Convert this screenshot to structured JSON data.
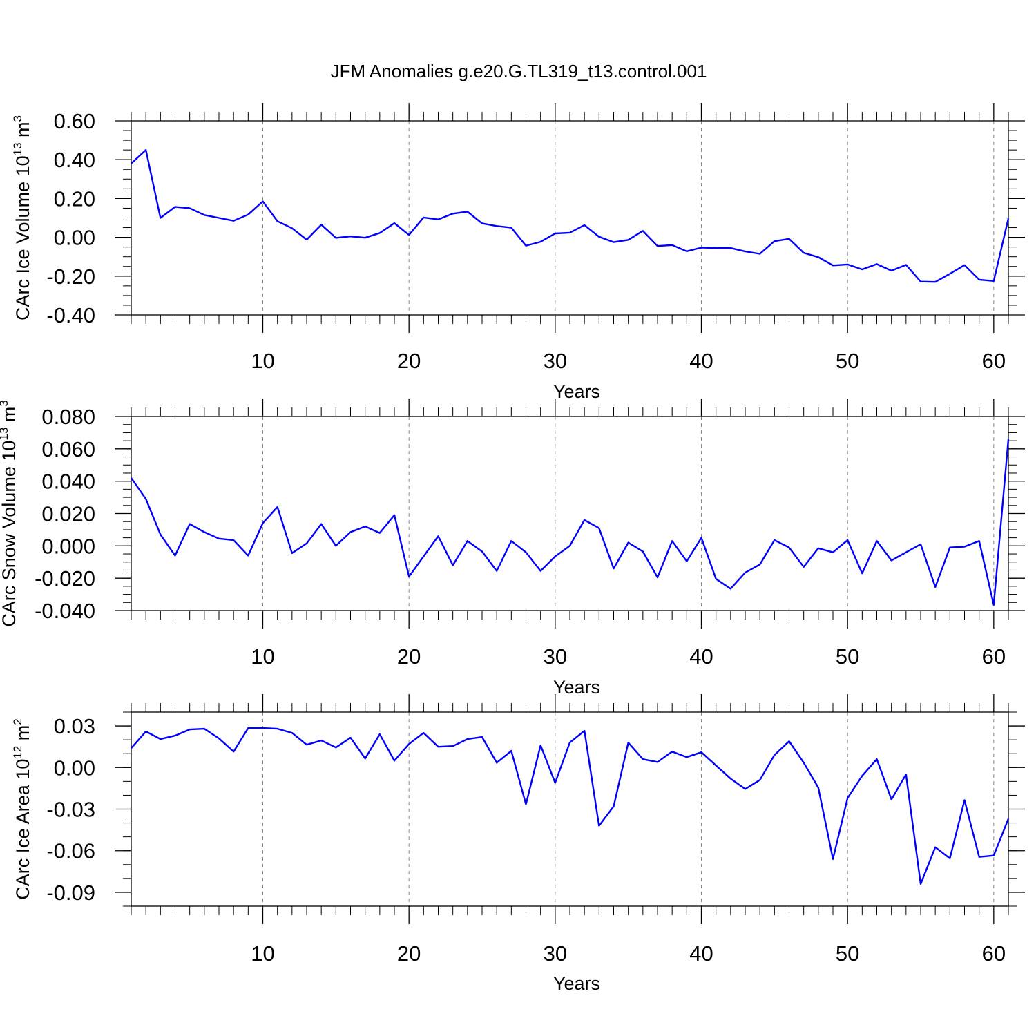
{
  "title": "JFM Anomalies g.e20.G.TL319_t13.control.001",
  "line_color": "#0000ff",
  "chart_data": [
    {
      "type": "line",
      "name": "ice-volume",
      "xlabel": "Years",
      "ylabel": {
        "base": "CArc Ice Volume 10",
        "exp": "13",
        "unit": " m",
        "unit_exp": "3"
      },
      "xlim": [
        1,
        61
      ],
      "ylim": [
        -0.4,
        0.6
      ],
      "xticks": [
        10,
        20,
        30,
        40,
        50,
        60
      ],
      "xtick_labels": [
        "10",
        "20",
        "30",
        "40",
        "50",
        "60"
      ],
      "yticks": [
        -0.4,
        -0.2,
        0.0,
        0.2,
        0.4,
        0.6
      ],
      "ytick_labels": [
        "-0.40",
        "-0.20",
        "0.00",
        "0.20",
        "0.40",
        "0.60"
      ],
      "y_minor_step": 0.05,
      "x": [
        1,
        2,
        3,
        4,
        5,
        6,
        7,
        8,
        9,
        10,
        11,
        12,
        13,
        14,
        15,
        16,
        17,
        18,
        19,
        20,
        21,
        22,
        23,
        24,
        25,
        26,
        27,
        28,
        29,
        30,
        31,
        32,
        33,
        34,
        35,
        36,
        37,
        38,
        39,
        40,
        41,
        42,
        43,
        44,
        45,
        46,
        47,
        48,
        49,
        50,
        51,
        52,
        53,
        54,
        55,
        56,
        57,
        58,
        59,
        60,
        61
      ],
      "values": [
        0.38,
        0.45,
        0.1,
        0.157,
        0.15,
        0.115,
        0.1,
        0.085,
        0.117,
        0.185,
        0.083,
        0.047,
        -0.012,
        0.065,
        -0.003,
        0.005,
        -0.002,
        0.022,
        0.073,
        0.012,
        0.102,
        0.092,
        0.122,
        0.132,
        0.072,
        0.058,
        0.05,
        -0.043,
        -0.023,
        0.02,
        0.024,
        0.063,
        0.003,
        -0.025,
        -0.013,
        0.033,
        -0.045,
        -0.04,
        -0.072,
        -0.053,
        -0.055,
        -0.055,
        -0.073,
        -0.085,
        -0.02,
        -0.008,
        -0.08,
        -0.102,
        -0.145,
        -0.14,
        -0.165,
        -0.138,
        -0.172,
        -0.142,
        -0.228,
        -0.23,
        -0.188,
        -0.143,
        -0.218,
        -0.225,
        0.097
      ]
    },
    {
      "type": "line",
      "name": "snow-volume",
      "xlabel": "Years",
      "ylabel": {
        "base": "CArc Snow Volume 10",
        "exp": "13",
        "unit": " m",
        "unit_exp": "3"
      },
      "xlim": [
        1,
        61
      ],
      "ylim": [
        -0.04,
        0.08
      ],
      "xticks": [
        10,
        20,
        30,
        40,
        50,
        60
      ],
      "xtick_labels": [
        "10",
        "20",
        "30",
        "40",
        "50",
        "60"
      ],
      "yticks": [
        -0.04,
        -0.02,
        0.0,
        0.02,
        0.04,
        0.06,
        0.08
      ],
      "ytick_labels": [
        "-0.040",
        "-0.020",
        "0.000",
        "0.020",
        "0.040",
        "0.060",
        "0.080"
      ],
      "y_minor_step": 0.005,
      "x": [
        1,
        2,
        3,
        4,
        5,
        6,
        7,
        8,
        9,
        10,
        11,
        12,
        13,
        14,
        15,
        16,
        17,
        18,
        19,
        20,
        21,
        22,
        23,
        24,
        25,
        26,
        27,
        28,
        29,
        30,
        31,
        32,
        33,
        34,
        35,
        36,
        37,
        38,
        39,
        40,
        41,
        42,
        43,
        44,
        45,
        46,
        47,
        48,
        49,
        50,
        51,
        52,
        53,
        54,
        55,
        56,
        57,
        58,
        59,
        60,
        61
      ],
      "values": [
        0.042,
        0.029,
        0.007,
        -0.006,
        0.0135,
        0.0085,
        0.0045,
        0.0035,
        -0.006,
        0.014,
        0.024,
        -0.0045,
        0.0015,
        0.0135,
        0.0,
        0.0085,
        0.012,
        0.008,
        0.019,
        -0.019,
        -0.0065,
        0.006,
        -0.012,
        0.003,
        -0.0035,
        -0.0155,
        0.003,
        -0.004,
        -0.0155,
        -0.0065,
        0.0,
        0.016,
        0.011,
        -0.014,
        0.002,
        -0.0035,
        -0.0195,
        0.003,
        -0.0095,
        0.005,
        -0.0205,
        -0.0265,
        -0.0165,
        -0.0115,
        0.0035,
        -0.001,
        -0.013,
        -0.0015,
        -0.004,
        0.0035,
        -0.017,
        0.003,
        -0.009,
        -0.004,
        0.001,
        -0.0255,
        -0.001,
        -0.0005,
        0.003,
        -0.0365,
        0.066
      ]
    },
    {
      "type": "line",
      "name": "ice-area",
      "xlabel": "Years",
      "ylabel": {
        "base": "CArc Ice Area 10",
        "exp": "12",
        "unit": " m",
        "unit_exp": "2"
      },
      "xlim": [
        1,
        61
      ],
      "ylim": [
        -0.1,
        0.04
      ],
      "xticks": [
        10,
        20,
        30,
        40,
        50,
        60
      ],
      "xtick_labels": [
        "10",
        "20",
        "30",
        "40",
        "50",
        "60"
      ],
      "yticks": [
        -0.09,
        -0.06,
        -0.03,
        0.0,
        0.03
      ],
      "ytick_labels": [
        "-0.09",
        "-0.06",
        "-0.03",
        "0.00",
        "0.03"
      ],
      "y_minor_step": 0.01,
      "x": [
        1,
        2,
        3,
        4,
        5,
        6,
        7,
        8,
        9,
        10,
        11,
        12,
        13,
        14,
        15,
        16,
        17,
        18,
        19,
        20,
        21,
        22,
        23,
        24,
        25,
        26,
        27,
        28,
        29,
        30,
        31,
        32,
        33,
        34,
        35,
        36,
        37,
        38,
        39,
        40,
        41,
        42,
        43,
        44,
        45,
        46,
        47,
        48,
        49,
        50,
        51,
        52,
        53,
        54,
        55,
        56,
        57,
        58,
        59,
        60,
        61
      ],
      "values": [
        0.014,
        0.026,
        0.0205,
        0.023,
        0.0275,
        0.028,
        0.021,
        0.0115,
        0.0285,
        0.0285,
        0.028,
        0.025,
        0.0165,
        0.0195,
        0.0145,
        0.0215,
        0.0065,
        0.024,
        0.005,
        0.017,
        0.025,
        0.015,
        0.0155,
        0.0205,
        0.022,
        0.0035,
        0.012,
        -0.0265,
        0.016,
        -0.011,
        0.018,
        0.0265,
        -0.042,
        -0.028,
        0.018,
        0.006,
        0.004,
        0.0115,
        0.0075,
        0.011,
        0.0015,
        -0.008,
        -0.0155,
        -0.009,
        0.009,
        0.019,
        0.0035,
        -0.0145,
        -0.066,
        -0.022,
        -0.006,
        0.006,
        -0.023,
        -0.005,
        -0.084,
        -0.0575,
        -0.0655,
        -0.0235,
        -0.0645,
        -0.0635,
        -0.037
      ]
    }
  ]
}
